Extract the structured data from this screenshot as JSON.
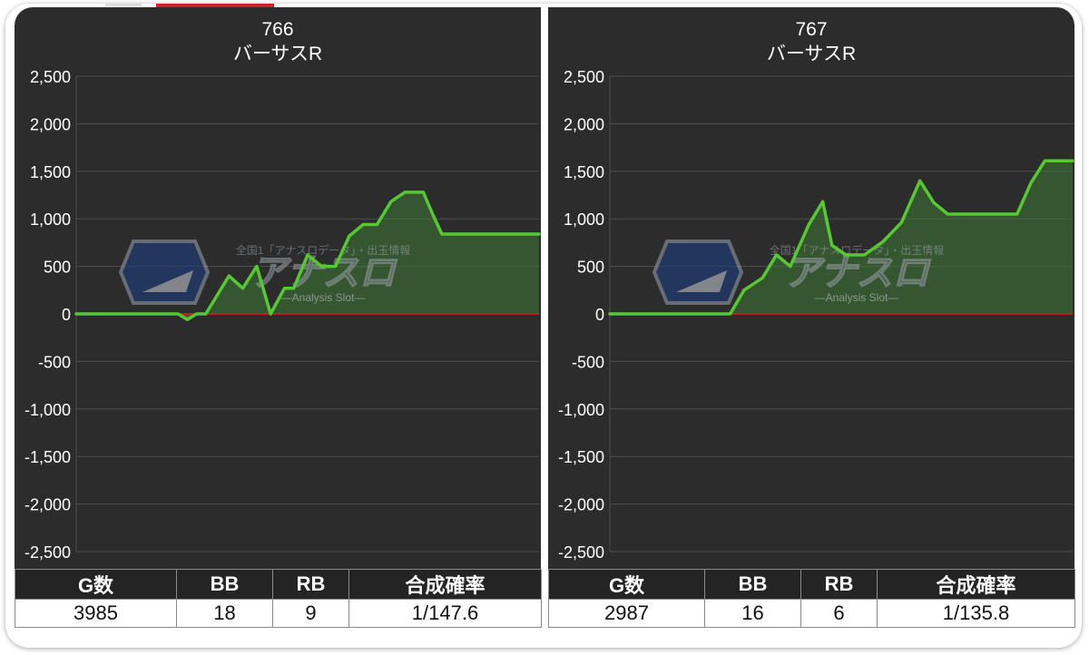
{
  "panels": [
    {
      "machine_number": "766",
      "machine_name": "バーサスR",
      "stats": {
        "headers": [
          "G数",
          "BB",
          "RB",
          "合成確率"
        ],
        "values": [
          "3985",
          "18",
          "9",
          "1/147.6"
        ]
      }
    },
    {
      "machine_number": "767",
      "machine_name": "バーサスR",
      "stats": {
        "headers": [
          "G数",
          "BB",
          "RB",
          "合成確率"
        ],
        "values": [
          "2987",
          "16",
          "6",
          "1/135.8"
        ]
      }
    }
  ],
  "watermark": {
    "top_text": "全国1「アナスロデータ」・出玉情報",
    "logo_text": "アナスロ",
    "sub_text": "—Analysis Slot—"
  },
  "chart_data": [
    {
      "type": "area",
      "title": "766 バーサスR",
      "ylim": [
        -2500,
        2500
      ],
      "y_ticks": [
        2500,
        2000,
        1500,
        1000,
        500,
        0,
        -500,
        -1000,
        -1500,
        -2000,
        -2500
      ],
      "y_tick_labels": [
        "2,500",
        "2,000",
        "1,500",
        "1,000",
        "500",
        "0",
        "-500",
        "-1,000",
        "-1,500",
        "-2,000",
        "-2,500"
      ],
      "grid": true,
      "baseline": 0,
      "colors": {
        "line": "#55c832",
        "fill": "#3e7a34",
        "baseline": "#d42020",
        "grid": "#4e4e4e",
        "background": "#2c2c2c"
      },
      "series": [
        {
          "x": [
            0,
            22,
            24,
            26,
            28,
            33,
            36,
            39,
            42,
            45,
            47,
            50,
            53,
            56,
            59,
            62,
            65,
            68,
            71,
            73,
            75,
            77,
            79,
            81,
            83,
            85,
            88,
            91,
            94,
            97,
            100
          ],
          "y": [
            0,
            0,
            -60,
            0,
            0,
            400,
            270,
            500,
            0,
            270,
            270,
            620,
            500,
            500,
            820,
            940,
            940,
            1180,
            1280,
            1280,
            1280,
            1050,
            840,
            840,
            840,
            840,
            840,
            840,
            840,
            840,
            840
          ]
        }
      ]
    },
    {
      "type": "area",
      "title": "767 バーサスR",
      "ylim": [
        -2500,
        2500
      ],
      "y_ticks": [
        2500,
        2000,
        1500,
        1000,
        500,
        0,
        -500,
        -1000,
        -1500,
        -2000,
        -2500
      ],
      "y_tick_labels": [
        "2,500",
        "2,000",
        "1,500",
        "1,000",
        "500",
        "0",
        "-500",
        "-1,000",
        "-1,500",
        "-2,000",
        "-2,500"
      ],
      "grid": true,
      "baseline": 0,
      "colors": {
        "line": "#55c832",
        "fill": "#3e7a34",
        "baseline": "#d42020",
        "grid": "#4e4e4e",
        "background": "#2c2c2c"
      },
      "series": [
        {
          "x": [
            0,
            26,
            29,
            33,
            36,
            39,
            43,
            46,
            48,
            51,
            55,
            59,
            63,
            67,
            70,
            73,
            76,
            79,
            82,
            88,
            91,
            94,
            100
          ],
          "y": [
            0,
            0,
            250,
            380,
            620,
            500,
            940,
            1180,
            720,
            620,
            620,
            760,
            960,
            1400,
            1170,
            1050,
            1050,
            1050,
            1050,
            1050,
            1380,
            1610,
            1610
          ]
        }
      ]
    }
  ]
}
